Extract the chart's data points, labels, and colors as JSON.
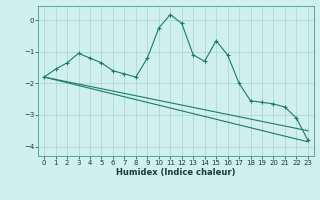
{
  "xlabel": "Humidex (Indice chaleur)",
  "background_color": "#cff0ec",
  "grid_color": "#b0d8d4",
  "line_color": "#1a7a6e",
  "xlim": [
    -0.5,
    23.5
  ],
  "ylim": [
    -4.3,
    0.45
  ],
  "xticks": [
    0,
    1,
    2,
    3,
    4,
    5,
    6,
    7,
    8,
    9,
    10,
    11,
    12,
    13,
    14,
    15,
    16,
    17,
    18,
    19,
    20,
    21,
    22,
    23
  ],
  "yticks": [
    0,
    -1,
    -2,
    -3,
    -4
  ],
  "curve1_x": [
    0,
    1,
    2,
    3,
    4,
    5,
    6,
    7,
    8,
    9,
    10,
    11,
    12,
    13,
    14,
    15,
    16,
    17,
    18,
    19,
    20,
    21,
    22,
    23
  ],
  "curve1_y": [
    -1.8,
    -1.55,
    -1.35,
    -1.05,
    -1.2,
    -1.35,
    -1.6,
    -1.7,
    -1.8,
    -1.2,
    -0.25,
    0.18,
    -0.1,
    -1.1,
    -1.3,
    -0.65,
    -1.1,
    -2.0,
    -2.55,
    -2.6,
    -2.65,
    -2.75,
    -3.1,
    -3.8
  ],
  "curve2_x": [
    0,
    23
  ],
  "curve2_y": [
    -1.8,
    -3.85
  ],
  "curve3_x": [
    0,
    23
  ],
  "curve3_y": [
    -1.8,
    -3.5
  ]
}
